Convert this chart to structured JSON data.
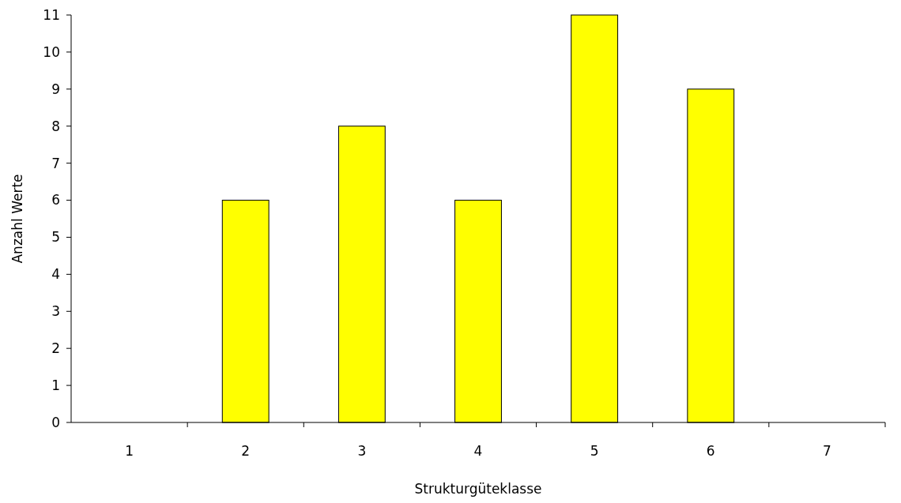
{
  "chart_data": {
    "type": "bar",
    "xlabel": "Strukturgüteklasse",
    "ylabel": "Anzahl Werte",
    "categories": [
      "1",
      "2",
      "3",
      "4",
      "5",
      "6",
      "7"
    ],
    "values": [
      0,
      6,
      8,
      6,
      11,
      9,
      0
    ],
    "color": "#ffff00",
    "ylim": [
      0,
      11
    ],
    "yticks": [
      0,
      1,
      2,
      3,
      4,
      5,
      6,
      7,
      8,
      9,
      10,
      11
    ],
    "grid": false
  }
}
